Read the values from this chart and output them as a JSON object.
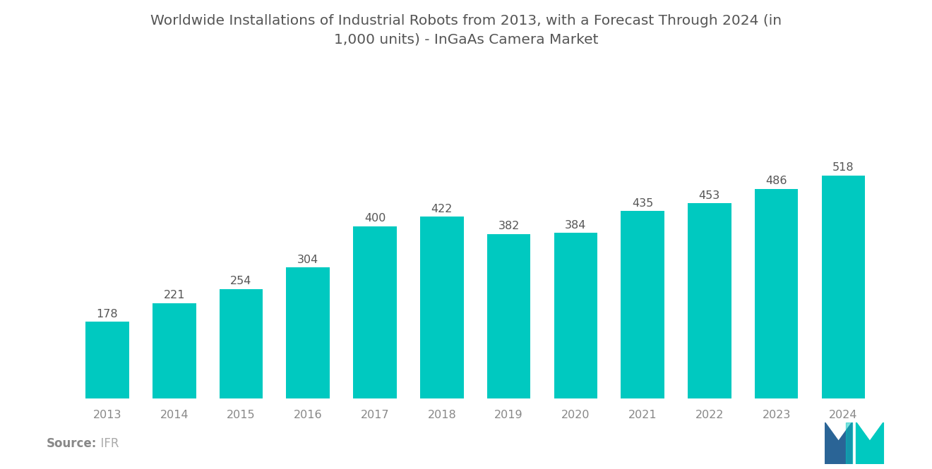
{
  "title_line1": "Worldwide Installations of Industrial Robots from 2013, with a Forecast Through 2024 (in",
  "title_line2": "1,000 units) - InGaAs Camera Market",
  "years": [
    "2013",
    "2014",
    "2015",
    "2016",
    "2017",
    "2018",
    "2019",
    "2020",
    "2021",
    "2022",
    "2023",
    "2024"
  ],
  "values": [
    178,
    221,
    254,
    304,
    400,
    422,
    382,
    384,
    435,
    453,
    486,
    518
  ],
  "bar_color": "#00C9C0",
  "background_color": "#ffffff",
  "source_label": "Source:",
  "source_value": "  IFR",
  "title_fontsize": 14.5,
  "label_fontsize": 11.5,
  "tick_fontsize": 11.5,
  "source_fontsize": 12,
  "ylim": [
    0,
    620
  ],
  "bar_width": 0.65,
  "label_color": "#555555",
  "tick_color": "#888888",
  "logo_blue": "#2A6496",
  "logo_teal": "#00C9C0"
}
